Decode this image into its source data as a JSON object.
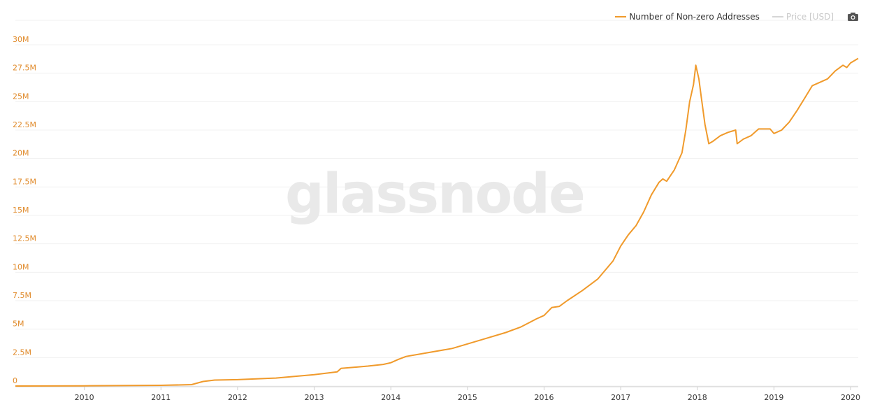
{
  "legend": {
    "series_label": "Number of Non-zero Addresses",
    "price_label": "Price [USD]",
    "camera_icon": "camera-icon"
  },
  "watermark": "glassnode",
  "colors": {
    "series": "#f09a2b",
    "axis_text": "#e08a2a",
    "grid": "#f0f0f0",
    "price_off": "#d6d6d6"
  },
  "chart_data": {
    "type": "line",
    "title": "",
    "xlabel": "",
    "ylabel": "",
    "ylim": [
      0,
      30000000
    ],
    "xlim": [
      2009.1,
      2020.1
    ],
    "grid": true,
    "legend_position": "top-right",
    "y_ticks": [
      "0",
      "2.5M",
      "5M",
      "7.5M",
      "10M",
      "12.5M",
      "15M",
      "17.5M",
      "20M",
      "22.5M",
      "25M",
      "27.5M",
      "30M"
    ],
    "y_tick_values": [
      0,
      2500000,
      5000000,
      7500000,
      10000000,
      12500000,
      15000000,
      17500000,
      20000000,
      22500000,
      25000000,
      27500000,
      30000000
    ],
    "x_ticks": [
      "2010",
      "2011",
      "2012",
      "2013",
      "2014",
      "2015",
      "2016",
      "2017",
      "2018",
      "2019",
      "2020"
    ],
    "x_tick_values": [
      2010,
      2011,
      2012,
      2013,
      2014,
      2015,
      2016,
      2017,
      2018,
      2019,
      2020
    ],
    "series": [
      {
        "name": "Number of Non-zero Addresses",
        "x": [
          2009.1,
          2010.0,
          2011.0,
          2011.4,
          2011.55,
          2011.7,
          2012.0,
          2012.5,
          2013.0,
          2013.3,
          2013.35,
          2013.7,
          2013.9,
          2014.0,
          2014.1,
          2014.2,
          2014.5,
          2014.8,
          2015.0,
          2015.2,
          2015.5,
          2015.7,
          2015.9,
          2016.0,
          2016.1,
          2016.2,
          2016.3,
          2016.5,
          2016.7,
          2016.8,
          2016.9,
          2017.0,
          2017.1,
          2017.2,
          2017.3,
          2017.4,
          2017.5,
          2017.55,
          2017.6,
          2017.7,
          2017.8,
          2017.85,
          2017.9,
          2017.95,
          2017.98,
          2018.02,
          2018.05,
          2018.1,
          2018.15,
          2018.2,
          2018.3,
          2018.4,
          2018.5,
          2018.52,
          2018.6,
          2018.7,
          2018.8,
          2018.95,
          2019.0,
          2019.1,
          2019.2,
          2019.3,
          2019.4,
          2019.5,
          2019.6,
          2019.7,
          2019.8,
          2019.9,
          2019.95,
          2020.0,
          2020.05,
          2020.1
        ],
        "values": [
          0,
          20000,
          60000,
          120000,
          400000,
          520000,
          560000,
          700000,
          1000000,
          1250000,
          1550000,
          1750000,
          1900000,
          2050000,
          2350000,
          2600000,
          2950000,
          3300000,
          3700000,
          4100000,
          4700000,
          5200000,
          5900000,
          6200000,
          6900000,
          7000000,
          7500000,
          8400000,
          9400000,
          10200000,
          11000000,
          12300000,
          13300000,
          14100000,
          15300000,
          16800000,
          17900000,
          18200000,
          18000000,
          19000000,
          20500000,
          22500000,
          25000000,
          26500000,
          28200000,
          27000000,
          25500000,
          23000000,
          21300000,
          21500000,
          22000000,
          22300000,
          22500000,
          21300000,
          21700000,
          22000000,
          22600000,
          22600000,
          22200000,
          22500000,
          23200000,
          24200000,
          25300000,
          26400000,
          26700000,
          27000000,
          27700000,
          28200000,
          28000000,
          28400000,
          28600000,
          28800000
        ]
      }
    ]
  }
}
